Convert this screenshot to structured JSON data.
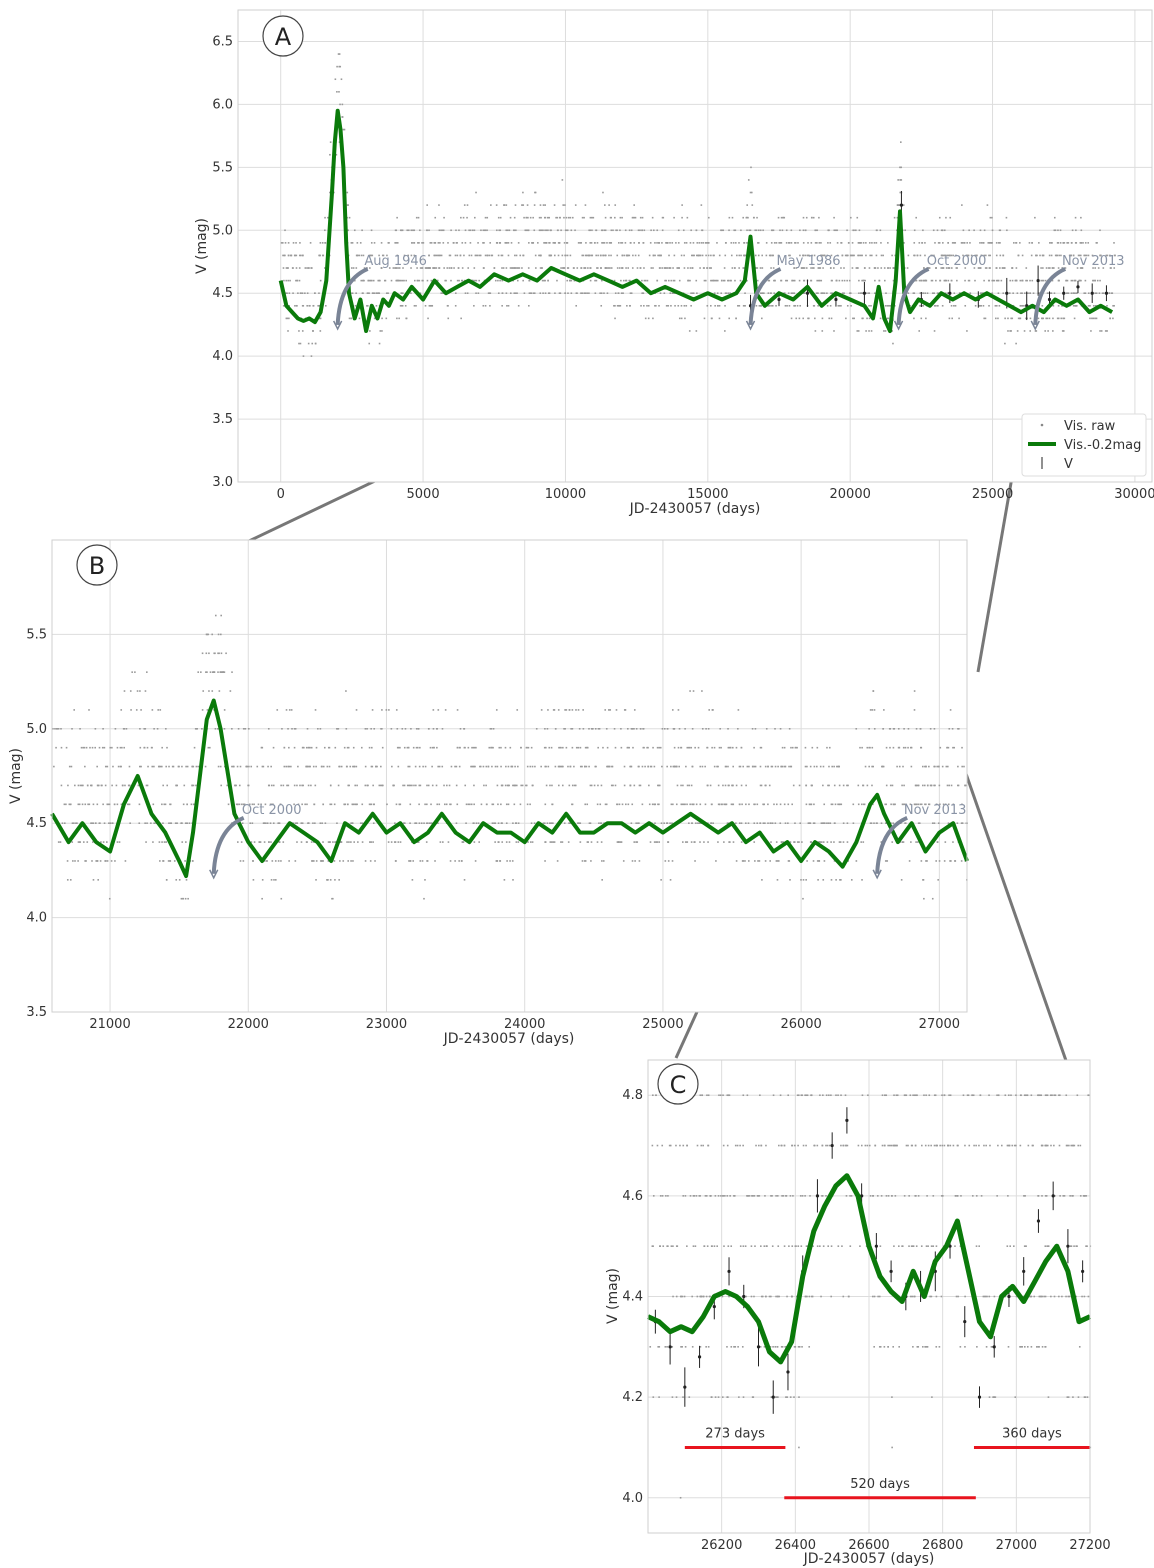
{
  "chart_data": [
    {
      "panel": "A",
      "type": "scatter",
      "xlabel": "JD-2430057 (days)",
      "ylabel": "V (mag)",
      "xlim": [
        -1500,
        30600
      ],
      "ylim": [
        6.75,
        3.0
      ],
      "y_inverted": true,
      "xticks": [
        "0",
        "5000",
        "10000",
        "15000",
        "20000",
        "25000",
        "30000"
      ],
      "yticks": [
        "3.0",
        "3.5",
        "4.0",
        "4.5",
        "5.0",
        "5.5",
        "6.0",
        "6.5"
      ],
      "grid": true,
      "legend": {
        "placement": "bottom-right",
        "entries": [
          {
            "label": "Vis. raw",
            "marker": "dot",
            "color": "#888888"
          },
          {
            "label": "Vis.-0.2mag",
            "marker": "line",
            "color": "#0a7a0a"
          },
          {
            "label": "V",
            "marker": "errorbar",
            "color": "#222222"
          }
        ]
      },
      "annotations": [
        {
          "text": "Aug 1946",
          "x": 2000,
          "y": 4.2
        },
        {
          "text": "May 1986",
          "x": 16500,
          "y": 4.2
        },
        {
          "text": "Oct 2000",
          "x": 21700,
          "y": 4.2
        },
        {
          "text": "Nov 2013",
          "x": 26500,
          "y": 4.2
        }
      ],
      "series": [
        {
          "name": "Vis.-0.2mag",
          "style": "line",
          "color": "#0a7a0a",
          "x": [
            0,
            200,
            400,
            600,
            800,
            1000,
            1200,
            1400,
            1600,
            1800,
            1900,
            2000,
            2100,
            2200,
            2300,
            2400,
            2500,
            2600,
            2800,
            3000,
            3200,
            3400,
            3600,
            3800,
            4000,
            4300,
            4600,
            5000,
            5400,
            5800,
            6200,
            6600,
            7000,
            7500,
            8000,
            8500,
            9000,
            9500,
            10000,
            10500,
            11000,
            11500,
            12000,
            12500,
            13000,
            13500,
            14000,
            14500,
            15000,
            15500,
            16000,
            16300,
            16500,
            16700,
            17000,
            17500,
            18000,
            18500,
            19000,
            19500,
            20000,
            20500,
            20800,
            21000,
            21200,
            21400,
            21600,
            21750,
            21900,
            22100,
            22400,
            22800,
            23200,
            23600,
            24000,
            24400,
            24800,
            25200,
            25600,
            26000,
            26400,
            26800,
            27200,
            27600,
            28000,
            28400,
            28800,
            29200
          ],
          "y": [
            4.6,
            4.4,
            4.35,
            4.3,
            4.28,
            4.3,
            4.27,
            4.35,
            4.6,
            5.3,
            5.7,
            5.95,
            5.8,
            5.5,
            4.9,
            4.5,
            4.4,
            4.3,
            4.45,
            4.2,
            4.4,
            4.3,
            4.45,
            4.4,
            4.5,
            4.45,
            4.55,
            4.45,
            4.6,
            4.5,
            4.55,
            4.6,
            4.55,
            4.65,
            4.6,
            4.65,
            4.6,
            4.7,
            4.65,
            4.6,
            4.65,
            4.6,
            4.55,
            4.6,
            4.5,
            4.55,
            4.5,
            4.45,
            4.5,
            4.45,
            4.5,
            4.6,
            4.95,
            4.5,
            4.4,
            4.5,
            4.45,
            4.55,
            4.4,
            4.5,
            4.45,
            4.4,
            4.3,
            4.55,
            4.3,
            4.2,
            4.6,
            5.15,
            4.5,
            4.35,
            4.45,
            4.4,
            4.5,
            4.45,
            4.5,
            4.45,
            4.5,
            4.45,
            4.4,
            4.35,
            4.4,
            4.35,
            4.45,
            4.4,
            4.45,
            4.35,
            4.4,
            4.35
          ]
        },
        {
          "name": "V",
          "style": "errorbar",
          "color": "#222222",
          "x": [
            16500,
            17500,
            18500,
            19500,
            20500,
            21500,
            21800,
            22500,
            23500,
            24500,
            25500,
            26200,
            26600,
            27000,
            27500,
            28000,
            28500,
            29000
          ],
          "y": [
            4.4,
            4.45,
            4.5,
            4.45,
            4.5,
            4.4,
            5.2,
            4.45,
            4.5,
            4.45,
            4.5,
            4.4,
            4.6,
            4.45,
            4.5,
            4.55,
            4.5,
            4.5
          ]
        }
      ]
    },
    {
      "panel": "B",
      "type": "scatter",
      "xlabel": "JD-2430057 (days)",
      "ylabel": "V (mag)",
      "xlim": [
        20580,
        27200
      ],
      "ylim": [
        6.0,
        3.5
      ],
      "y_inverted": true,
      "xticks": [
        "21000",
        "22000",
        "23000",
        "24000",
        "25000",
        "26000",
        "27000"
      ],
      "yticks": [
        "3.5",
        "4.0",
        "4.5",
        "5.0",
        "5.5"
      ],
      "grid": true,
      "annotations": [
        {
          "text": "Oct 2000",
          "x": 21750,
          "y": 4.2
        },
        {
          "text": "Nov 2013",
          "x": 26550,
          "y": 4.2
        }
      ],
      "series": [
        {
          "name": "Vis.-0.2mag",
          "style": "line",
          "color": "#0a7a0a",
          "x": [
            20580,
            20700,
            20800,
            20900,
            21000,
            21100,
            21200,
            21300,
            21400,
            21500,
            21550,
            21600,
            21700,
            21750,
            21800,
            21900,
            22000,
            22100,
            22200,
            22300,
            22400,
            22500,
            22600,
            22700,
            22800,
            22900,
            23000,
            23100,
            23200,
            23300,
            23400,
            23500,
            23600,
            23700,
            23800,
            23900,
            24000,
            24100,
            24200,
            24300,
            24400,
            24500,
            24600,
            24700,
            24800,
            24900,
            25000,
            25100,
            25200,
            25300,
            25400,
            25500,
            25600,
            25700,
            25800,
            25900,
            26000,
            26100,
            26200,
            26300,
            26400,
            26500,
            26550,
            26600,
            26700,
            26800,
            26900,
            27000,
            27100,
            27200
          ],
          "y": [
            4.55,
            4.4,
            4.5,
            4.4,
            4.35,
            4.6,
            4.75,
            4.55,
            4.45,
            4.3,
            4.22,
            4.45,
            5.05,
            5.15,
            5.0,
            4.55,
            4.4,
            4.3,
            4.4,
            4.5,
            4.45,
            4.4,
            4.3,
            4.5,
            4.45,
            4.55,
            4.45,
            4.5,
            4.4,
            4.45,
            4.55,
            4.45,
            4.4,
            4.5,
            4.45,
            4.45,
            4.4,
            4.5,
            4.45,
            4.55,
            4.45,
            4.45,
            4.5,
            4.5,
            4.45,
            4.5,
            4.45,
            4.5,
            4.55,
            4.5,
            4.45,
            4.5,
            4.4,
            4.45,
            4.35,
            4.4,
            4.3,
            4.4,
            4.35,
            4.27,
            4.4,
            4.6,
            4.65,
            4.55,
            4.4,
            4.5,
            4.35,
            4.45,
            4.5,
            4.3
          ]
        }
      ]
    },
    {
      "panel": "C",
      "type": "scatter",
      "xlabel": "JD-2430057 (days)",
      "ylabel": "V (mag)",
      "xlim": [
        26000,
        27200
      ],
      "ylim": [
        4.87,
        3.93
      ],
      "y_inverted": true,
      "xticks": [
        "26200",
        "26400",
        "26600",
        "26800",
        "27000",
        "27200"
      ],
      "yticks": [
        "4.0",
        "4.2",
        "4.4",
        "4.6",
        "4.8"
      ],
      "grid": true,
      "intervals": [
        {
          "label": "273 days",
          "x0": 26100,
          "x1": 26373,
          "y": 4.1,
          "color": "#e8141e"
        },
        {
          "label": "520 days",
          "x0": 26370,
          "x1": 26890,
          "y": 4.0,
          "color": "#e8141e"
        },
        {
          "label": "360 days",
          "x0": 26885,
          "x1": 27200,
          "y": 4.1,
          "color": "#e8141e"
        }
      ],
      "series": [
        {
          "name": "Vis.-0.2mag",
          "style": "line",
          "color": "#0a7a0a",
          "x": [
            26000,
            26030,
            26060,
            26090,
            26120,
            26150,
            26180,
            26210,
            26240,
            26270,
            26300,
            26330,
            26360,
            26390,
            26420,
            26450,
            26480,
            26510,
            26540,
            26570,
            26600,
            26630,
            26660,
            26690,
            26720,
            26750,
            26780,
            26810,
            26840,
            26870,
            26900,
            26930,
            26960,
            26990,
            27020,
            27050,
            27080,
            27110,
            27140,
            27170,
            27200
          ],
          "y": [
            4.36,
            4.35,
            4.33,
            4.34,
            4.33,
            4.36,
            4.4,
            4.41,
            4.4,
            4.38,
            4.35,
            4.29,
            4.27,
            4.31,
            4.44,
            4.53,
            4.58,
            4.62,
            4.64,
            4.6,
            4.5,
            4.44,
            4.41,
            4.39,
            4.45,
            4.4,
            4.47,
            4.5,
            4.55,
            4.45,
            4.35,
            4.32,
            4.4,
            4.42,
            4.39,
            4.43,
            4.47,
            4.5,
            4.45,
            4.35,
            4.36
          ]
        },
        {
          "name": "V",
          "style": "errorbar",
          "color": "#222222",
          "x": [
            26020,
            26060,
            26100,
            26140,
            26180,
            26220,
            26260,
            26300,
            26340,
            26380,
            26420,
            26460,
            26500,
            26540,
            26580,
            26620,
            26660,
            26700,
            26740,
            26780,
            26820,
            26860,
            26900,
            26940,
            26980,
            27020,
            27060,
            27100,
            27140,
            27180
          ],
          "y": [
            4.35,
            4.3,
            4.22,
            4.28,
            4.38,
            4.45,
            4.4,
            4.3,
            4.2,
            4.25,
            4.45,
            4.6,
            4.7,
            4.75,
            4.6,
            4.5,
            4.45,
            4.4,
            4.42,
            4.45,
            4.5,
            4.35,
            4.2,
            4.3,
            4.4,
            4.45,
            4.55,
            4.6,
            4.5,
            4.45
          ]
        }
      ]
    }
  ]
}
